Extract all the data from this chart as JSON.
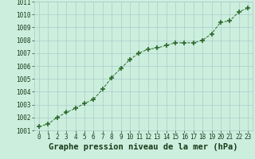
{
  "x": [
    0,
    1,
    2,
    3,
    4,
    5,
    6,
    7,
    8,
    9,
    10,
    11,
    12,
    13,
    14,
    15,
    16,
    17,
    18,
    19,
    20,
    21,
    22,
    23
  ],
  "y": [
    1001.3,
    1001.5,
    1002.0,
    1002.4,
    1002.7,
    1003.1,
    1003.4,
    1004.2,
    1005.1,
    1005.8,
    1006.5,
    1007.0,
    1007.3,
    1007.4,
    1007.6,
    1007.8,
    1007.8,
    1007.8,
    1008.0,
    1008.5,
    1009.4,
    1009.5,
    1010.2,
    1010.5
  ],
  "line_color": "#2d6a2d",
  "marker_color": "#2d6a2d",
  "bg_color": "#cceedd",
  "grid_color": "#aacccc",
  "xlabel": "Graphe pression niveau de la mer (hPa)",
  "xlabel_color": "#1a3a1a",
  "ylim": [
    1001.0,
    1011.0
  ],
  "xlim_min": -0.5,
  "xlim_max": 23.5,
  "yticks": [
    1001,
    1002,
    1003,
    1004,
    1005,
    1006,
    1007,
    1008,
    1009,
    1010,
    1011
  ],
  "xticks": [
    0,
    1,
    2,
    3,
    4,
    5,
    6,
    7,
    8,
    9,
    10,
    11,
    12,
    13,
    14,
    15,
    16,
    17,
    18,
    19,
    20,
    21,
    22,
    23
  ],
  "tick_fontsize": 5.5,
  "xlabel_fontsize": 7.5,
  "tick_color": "#1a3a1a"
}
